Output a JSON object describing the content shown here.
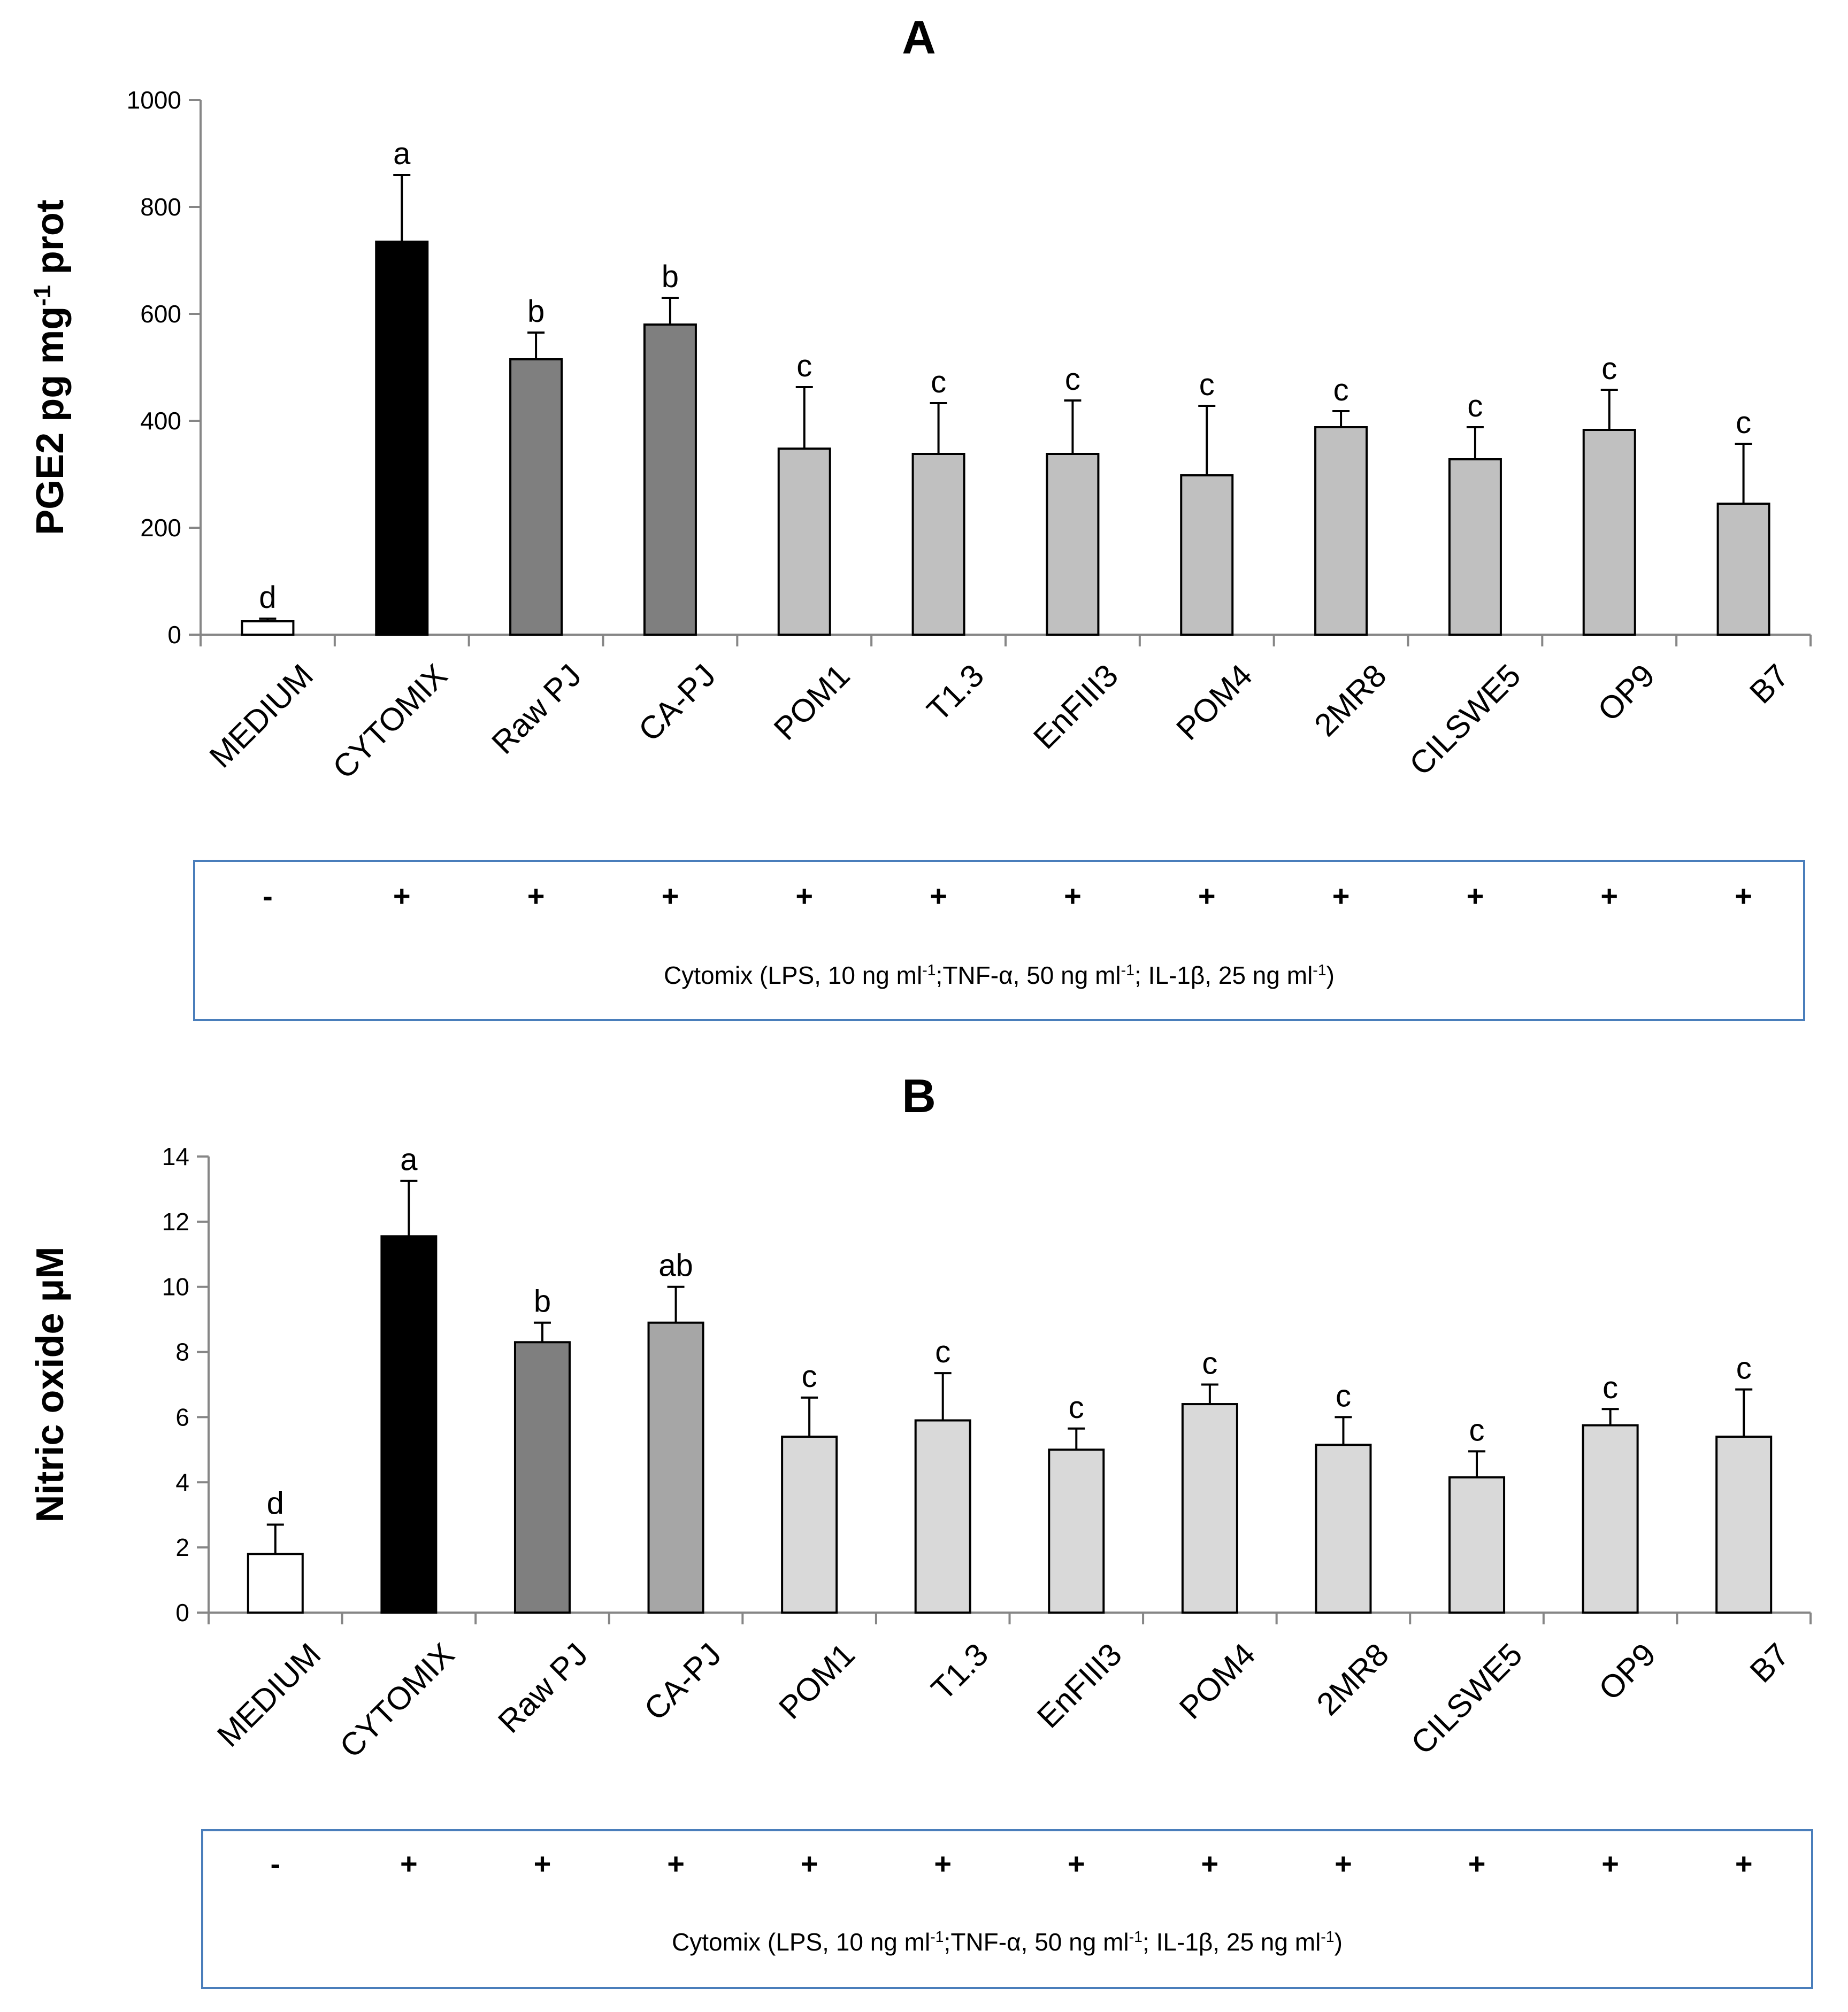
{
  "figure": {
    "panels": [
      {
        "letter": "A",
        "treatment_signs": [
          "-",
          "+",
          "+",
          "+",
          "+",
          "+",
          "+",
          "+",
          "+",
          "+",
          "+",
          "+"
        ],
        "treatment_note": {
          "text": "Cytomix   (LPS, 10 ng ml",
          "sup1": "-1",
          "text2": ";TNF-α, 50 ng ml",
          "sup2": "-1",
          "text3": ";  IL-1β, 25  ng ml",
          "sup3": "-1",
          "text4": ")"
        }
      },
      {
        "letter": "B",
        "treatment_signs": [
          "-",
          "+",
          "+",
          "+",
          "+",
          "+",
          "+",
          "+",
          "+",
          "+",
          "+",
          "+"
        ],
        "treatment_note": {
          "text": "Cytomix   (LPS, 10 ng ml",
          "sup1": "-1",
          "text2": ";TNF-α, 50 ng ml",
          "sup2": "-1",
          "text3": ";  IL-1β, 25  ng ml",
          "sup3": "-1",
          "text4": ")"
        }
      }
    ]
  },
  "chart_data": [
    {
      "type": "bar",
      "title": "A",
      "ylabel": "PGE2 pg mg",
      "ylabel_sup": "-1",
      "ylabel_suffix": " prot",
      "xlabel": "",
      "ylim": [
        0,
        1000
      ],
      "yticks": [
        0,
        200,
        400,
        600,
        800,
        1000
      ],
      "grid": false,
      "categories": [
        "MEDIUM",
        "CYTOMIX",
        "Raw PJ",
        "CA-PJ",
        "POM1",
        "T1.3",
        "EnFIII3",
        "POM4",
        "2MR8",
        "CILSWE5",
        "OP9",
        "B7"
      ],
      "values": [
        25,
        735,
        515,
        580,
        348,
        338,
        338,
        298,
        388,
        328,
        383,
        245
      ],
      "errors": [
        5,
        125,
        50,
        50,
        115,
        95,
        100,
        130,
        30,
        60,
        75,
        112
      ],
      "letters": [
        "d",
        "a",
        "b",
        "b",
        "c",
        "c",
        "c",
        "c",
        "c",
        "c",
        "c",
        "c"
      ],
      "colors": [
        "#ffffff",
        "#000000",
        "#7f7f7f",
        "#7f7f7f",
        "#c0c0c0",
        "#c0c0c0",
        "#c0c0c0",
        "#c0c0c0",
        "#c0c0c0",
        "#c0c0c0",
        "#c0c0c0",
        "#c0c0c0"
      ]
    },
    {
      "type": "bar",
      "title": "B",
      "ylabel": "Nitric oxide μM",
      "xlabel": "",
      "ylim": [
        0,
        14
      ],
      "yticks": [
        0,
        2,
        4,
        6,
        8,
        10,
        12,
        14
      ],
      "grid": false,
      "categories": [
        "MEDIUM",
        "CYTOMIX",
        "Raw PJ",
        "CA-PJ",
        "POM1",
        "T1.3",
        "EnFIII3",
        "POM4",
        "2MR8",
        "CILSWE5",
        "OP9",
        "B7"
      ],
      "values": [
        1.8,
        11.55,
        8.3,
        8.9,
        5.4,
        5.9,
        5.0,
        6.4,
        5.15,
        4.15,
        5.75,
        5.4
      ],
      "errors": [
        0.9,
        1.7,
        0.6,
        1.1,
        1.2,
        1.45,
        0.65,
        0.6,
        0.85,
        0.8,
        0.5,
        1.45
      ],
      "letters": [
        "d",
        "a",
        "b",
        "ab",
        "c",
        "c",
        "c",
        "c",
        "c",
        "c",
        "c",
        "c"
      ],
      "colors": [
        "#ffffff",
        "#000000",
        "#7f7f7f",
        "#a6a6a6",
        "#d9d9d9",
        "#d9d9d9",
        "#d9d9d9",
        "#d9d9d9",
        "#d9d9d9",
        "#d9d9d9",
        "#d9d9d9",
        "#d9d9d9"
      ]
    }
  ]
}
